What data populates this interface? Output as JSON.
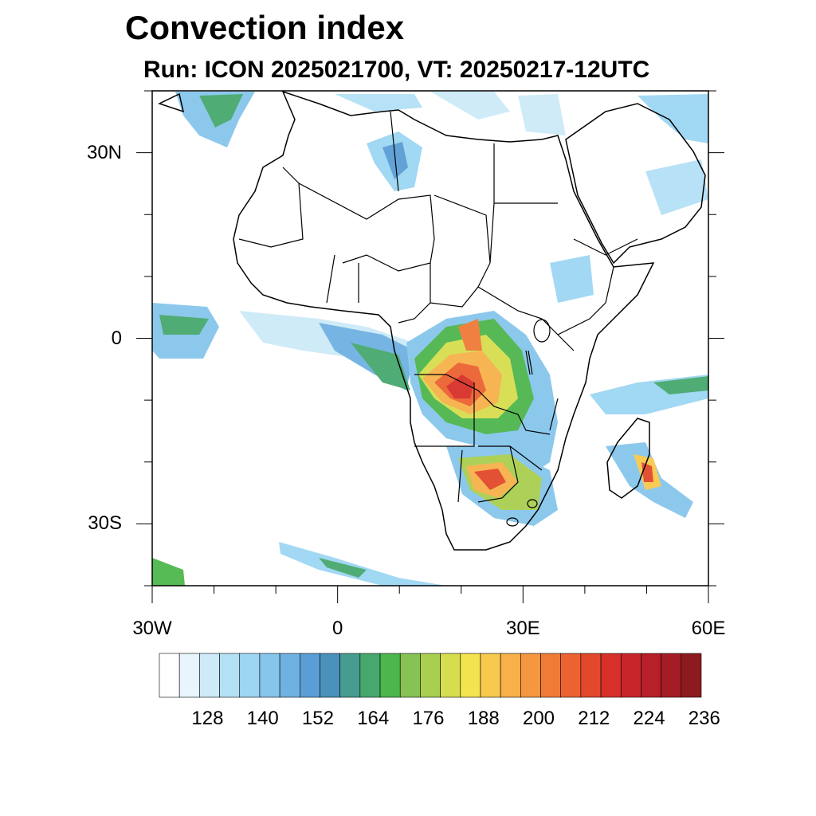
{
  "title": "Convection index",
  "subtitle": "Run: ICON 2025021700,  VT: 20250217-12UTC",
  "map": {
    "lon_range": [
      -30,
      60
    ],
    "lat_range": [
      -40,
      40
    ],
    "lat_ticks": [
      {
        "value": 30,
        "label": "30N"
      },
      {
        "value": 0,
        "label": "0"
      },
      {
        "value": -30,
        "label": "30S"
      }
    ],
    "lon_ticks": [
      {
        "value": -30,
        "label": "30W"
      },
      {
        "value": 0,
        "label": "0"
      },
      {
        "value": 30,
        "label": "30E"
      },
      {
        "value": 60,
        "label": "60E"
      }
    ]
  },
  "colorbar": {
    "label_values": [
      "128",
      "140",
      "152",
      "164",
      "176",
      "188",
      "200",
      "212",
      "224",
      "236"
    ],
    "colors": [
      "#ffffff",
      "#e8f5fc",
      "#cdeaf8",
      "#b4e0f6",
      "#9dd6f3",
      "#86c6ec",
      "#6fb2e2",
      "#5a9ed5",
      "#4a91bb",
      "#479c90",
      "#47a86e",
      "#4db64c",
      "#86c254",
      "#a9cf50",
      "#d6de4f",
      "#f3e34f",
      "#f7c94e",
      "#f7b04a",
      "#f59640",
      "#f07a37",
      "#ec6231",
      "#e2482b",
      "#d8302a",
      "#c8252b",
      "#b71f29",
      "#a41c26",
      "#8d1a1f"
    ]
  }
}
